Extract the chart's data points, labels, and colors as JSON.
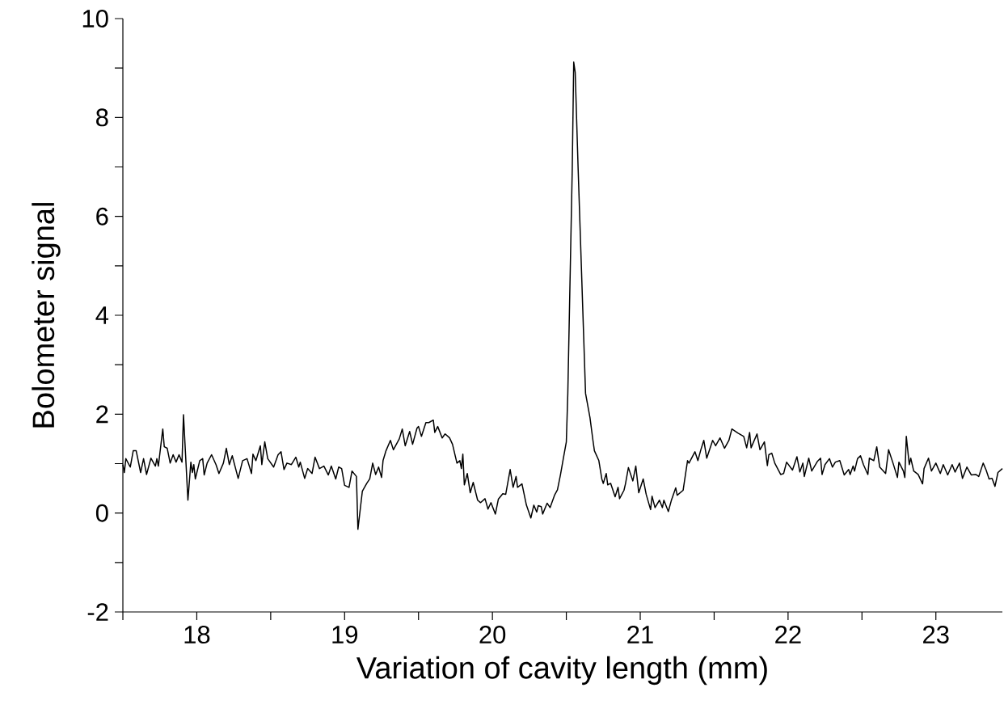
{
  "chart_data": {
    "type": "line",
    "xlabel": "Variation of cavity length (mm)",
    "ylabel": "Bolometer signal",
    "xlim": [
      17.5,
      23.45
    ],
    "ylim": [
      -2,
      10
    ],
    "xticks": [
      {
        "value": 17.5,
        "label": null
      },
      18,
      {
        "value": 18.5,
        "label": null
      },
      19,
      {
        "value": 19.5,
        "label": null
      },
      20,
      {
        "value": 20.5,
        "label": null
      },
      21,
      {
        "value": 21.5,
        "label": null
      },
      22,
      {
        "value": 22.5,
        "label": null
      },
      23
    ],
    "yticks": [
      -2,
      {
        "value": -1,
        "label": null
      },
      0,
      {
        "value": 1,
        "label": null
      },
      2,
      {
        "value": 3,
        "label": null
      },
      4,
      {
        "value": 5,
        "label": null
      },
      6,
      {
        "value": 7,
        "label": null
      },
      8,
      {
        "value": 9,
        "label": null
      },
      10
    ],
    "x": [
      17.5,
      17.51,
      17.52,
      17.55,
      17.57,
      17.59,
      17.62,
      17.64,
      17.66,
      17.69,
      17.72,
      17.73,
      17.74,
      17.77,
      17.78,
      17.8,
      17.82,
      17.84,
      17.86,
      17.88,
      17.9,
      17.91,
      17.94,
      17.96,
      17.97,
      17.98,
      17.99,
      18.02,
      18.04,
      18.05,
      18.07,
      18.1,
      18.13,
      18.15,
      18.18,
      18.2,
      18.22,
      18.24,
      18.28,
      18.31,
      18.34,
      18.37,
      18.38,
      18.4,
      18.43,
      18.44,
      18.46,
      18.48,
      18.52,
      18.55,
      18.57,
      18.59,
      18.61,
      18.64,
      18.67,
      18.69,
      18.7,
      18.73,
      18.75,
      18.78,
      18.8,
      18.83,
      18.86,
      18.89,
      18.91,
      18.94,
      18.96,
      18.98,
      19.0,
      19.03,
      19.05,
      19.08,
      19.09,
      19.12,
      19.15,
      19.17,
      19.19,
      19.21,
      19.23,
      19.25,
      19.26,
      19.28,
      19.31,
      19.33,
      19.37,
      19.39,
      19.41,
      19.44,
      19.46,
      19.49,
      19.5,
      19.52,
      19.55,
      19.57,
      19.6,
      19.61,
      19.63,
      19.66,
      19.68,
      19.71,
      19.73,
      19.76,
      19.78,
      19.79,
      19.8,
      19.81,
      19.83,
      19.85,
      19.87,
      19.9,
      19.92,
      19.95,
      19.97,
      19.99,
      20.02,
      20.04,
      20.07,
      20.09,
      20.12,
      20.14,
      20.16,
      20.17,
      20.2,
      20.23,
      20.26,
      20.28,
      20.3,
      20.31,
      20.33,
      20.34,
      20.37,
      20.39,
      20.42,
      20.44,
      20.46,
      20.48,
      20.5,
      20.51,
      20.54,
      20.55,
      20.56,
      20.58,
      20.63,
      20.66,
      20.68,
      20.69,
      20.72,
      20.74,
      20.75,
      20.77,
      20.78,
      20.8,
      20.83,
      20.85,
      20.86,
      20.89,
      20.9,
      20.92,
      20.95,
      20.97,
      20.99,
      21.02,
      21.04,
      21.07,
      21.08,
      21.1,
      21.13,
      21.15,
      21.16,
      21.19,
      21.21,
      21.24,
      21.25,
      21.29,
      21.32,
      21.33,
      21.37,
      21.39,
      21.41,
      21.43,
      21.45,
      21.49,
      21.51,
      21.54,
      21.57,
      21.6,
      21.62,
      21.66,
      21.7,
      21.72,
      21.74,
      21.75,
      21.79,
      21.81,
      21.84,
      21.86,
      21.87,
      21.89,
      21.91,
      21.95,
      21.97,
      21.99,
      22.03,
      22.06,
      22.08,
      22.1,
      22.11,
      22.14,
      22.16,
      22.2,
      22.22,
      22.23,
      22.25,
      22.28,
      22.3,
      22.32,
      22.35,
      22.38,
      22.41,
      22.42,
      22.44,
      22.45,
      22.47,
      22.49,
      22.51,
      22.54,
      22.55,
      22.58,
      22.6,
      22.62,
      22.66,
      22.68,
      22.71,
      22.74,
      22.75,
      22.78,
      22.79,
      22.8,
      22.82,
      22.83,
      22.85,
      22.88,
      22.91,
      22.92,
      22.95,
      22.97,
      23.0,
      23.03,
      23.05,
      23.08,
      23.11,
      23.13,
      23.16,
      23.18,
      23.21,
      23.24,
      23.27,
      23.29,
      23.32,
      23.34,
      23.36,
      23.38,
      23.4,
      23.42,
      23.45
    ],
    "series": [
      {
        "color": "#000000",
        "values": [
          0.98,
          0.82,
          1.1,
          0.93,
          1.26,
          1.26,
          0.82,
          1.1,
          0.78,
          1.11,
          0.95,
          1.1,
          0.95,
          1.7,
          1.34,
          1.31,
          1.01,
          1.18,
          1.03,
          1.18,
          1.03,
          1.99,
          0.26,
          1.03,
          0.82,
          0.98,
          0.69,
          1.06,
          1.1,
          0.77,
          1.01,
          1.18,
          0.98,
          0.8,
          1.01,
          1.31,
          0.98,
          1.16,
          0.7,
          1.06,
          1.1,
          0.8,
          1.19,
          1.06,
          1.36,
          0.98,
          1.44,
          1.1,
          0.93,
          1.18,
          1.24,
          0.88,
          1.01,
          0.98,
          1.13,
          0.93,
          1.03,
          0.7,
          0.9,
          0.8,
          1.13,
          0.9,
          0.95,
          0.77,
          0.95,
          0.69,
          0.93,
          0.9,
          0.56,
          0.52,
          0.85,
          0.74,
          -0.33,
          0.44,
          0.6,
          0.69,
          1.01,
          0.78,
          0.93,
          0.72,
          1.06,
          1.26,
          1.47,
          1.28,
          1.5,
          1.7,
          1.36,
          1.65,
          1.39,
          1.72,
          1.75,
          1.55,
          1.83,
          1.83,
          1.88,
          1.63,
          1.75,
          1.52,
          1.6,
          1.52,
          1.39,
          1.01,
          1.06,
          0.9,
          1.19,
          0.57,
          0.8,
          0.41,
          0.62,
          0.26,
          0.21,
          0.29,
          0.08,
          0.21,
          -0.02,
          0.28,
          0.39,
          0.38,
          0.88,
          0.52,
          0.74,
          0.52,
          0.59,
          0.16,
          -0.1,
          0.16,
          0.02,
          0.15,
          0.13,
          -0.02,
          0.2,
          0.11,
          0.36,
          0.47,
          0.77,
          1.11,
          1.44,
          2.42,
          6.95,
          9.12,
          8.91,
          6.95,
          2.42,
          1.93,
          1.47,
          1.26,
          1.06,
          0.69,
          0.6,
          0.8,
          0.57,
          0.6,
          0.33,
          0.52,
          0.29,
          0.46,
          0.59,
          0.92,
          0.65,
          0.95,
          0.41,
          0.69,
          0.38,
          0.07,
          0.34,
          0.11,
          0.26,
          0.11,
          0.26,
          0.03,
          0.25,
          0.51,
          0.36,
          0.46,
          1.06,
          1.01,
          1.24,
          1.06,
          1.28,
          1.47,
          1.11,
          1.47,
          1.36,
          1.52,
          1.31,
          1.47,
          1.7,
          1.62,
          1.55,
          1.32,
          1.63,
          1.32,
          1.6,
          1.28,
          1.44,
          0.96,
          1.18,
          1.21,
          1.01,
          0.78,
          0.8,
          1.03,
          0.87,
          1.14,
          0.83,
          1.01,
          0.74,
          1.11,
          0.85,
          1.05,
          1.11,
          0.78,
          0.98,
          1.1,
          0.93,
          1.03,
          1.06,
          0.77,
          0.88,
          0.78,
          0.95,
          0.85,
          1.1,
          1.16,
          0.98,
          0.78,
          1.11,
          1.06,
          1.34,
          0.93,
          0.8,
          1.28,
          1.01,
          0.72,
          1.03,
          0.85,
          0.72,
          1.55,
          0.98,
          1.11,
          0.85,
          0.78,
          0.59,
          0.9,
          1.11,
          0.85,
          1.01,
          0.8,
          0.98,
          0.77,
          0.98,
          0.83,
          1.01,
          0.7,
          0.93,
          0.77,
          0.78,
          0.74,
          1.01,
          0.87,
          0.69,
          0.7,
          0.54,
          0.82,
          0.9
        ]
      }
    ]
  }
}
